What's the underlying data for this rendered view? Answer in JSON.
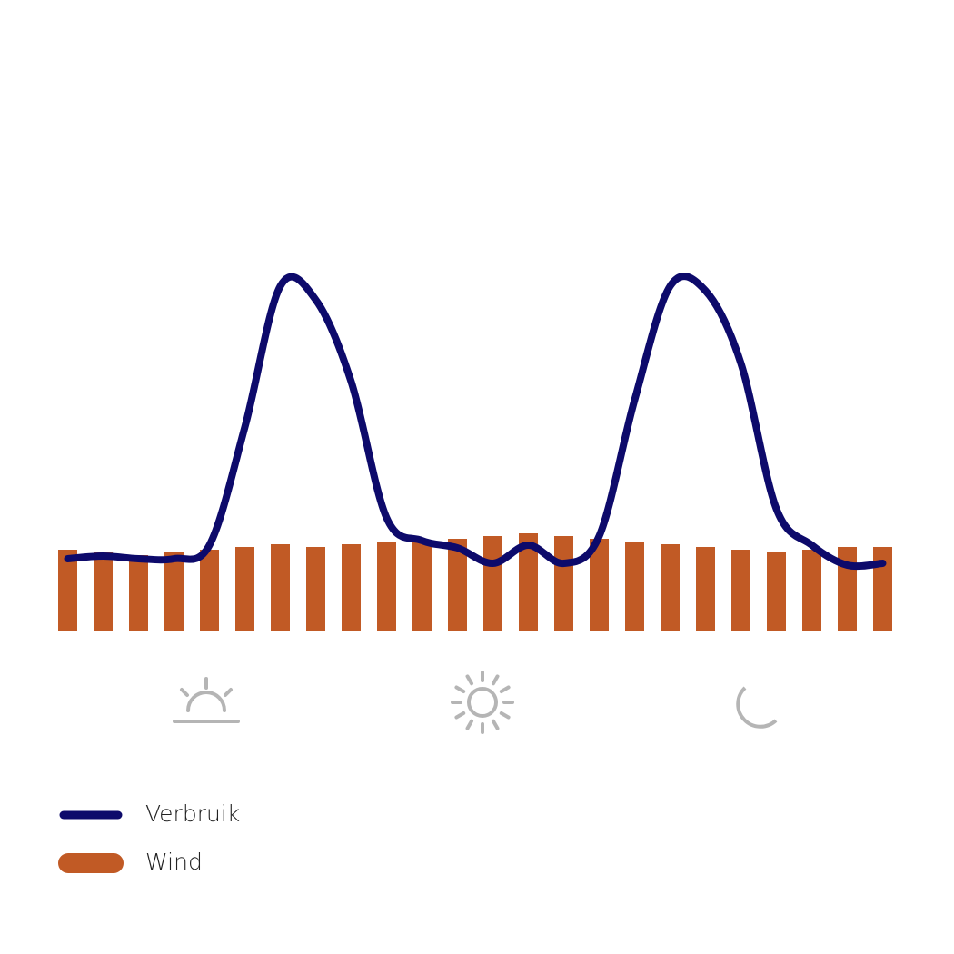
{
  "chart_data": {
    "type": "bar-line",
    "categories": [
      null,
      null,
      null,
      null,
      null,
      null,
      null,
      null,
      null,
      null,
      null,
      null,
      null,
      null,
      null,
      null,
      null,
      null,
      null,
      null,
      null,
      null,
      null,
      null
    ],
    "series": [
      {
        "name": "Verbruik",
        "type": "line",
        "color": "#0d0a6b",
        "values": [
          80,
          83,
          80,
          80,
          95,
          225,
          380,
          365,
          275,
          125,
          100,
          92,
          75,
          95,
          75,
          105,
          255,
          380,
          375,
          295,
          135,
          95,
          73,
          75
        ]
      },
      {
        "name": "Wind",
        "type": "bar",
        "color": "#c15a25",
        "values": [
          90,
          87,
          84,
          87,
          90,
          93,
          96,
          93,
          96,
          99,
          99,
          102,
          105,
          108,
          105,
          102,
          99,
          96,
          93,
          90,
          87,
          90,
          93,
          93
        ]
      }
    ],
    "ylim": [
      0,
      400
    ]
  }
}
